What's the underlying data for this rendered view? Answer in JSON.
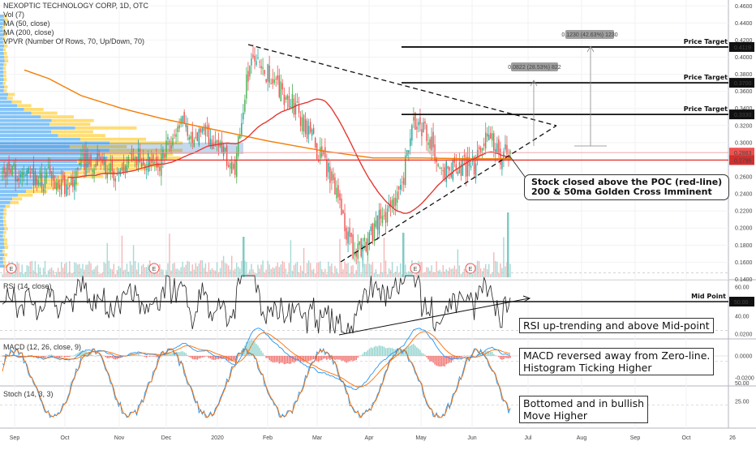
{
  "header": {
    "symbol_line": "NEXOPTIC TECHNOLOGY CORP, 1D, OTC",
    "indicators": [
      "Vol (7)",
      "MA (50, close)",
      "MA (200, close)",
      "VPVR (Number Of Rows, 70, Up/Down, 70)"
    ]
  },
  "panes": {
    "rsi_title": "RSI (14, close)",
    "macd_title": "MACD (12, 26, close, 9)",
    "stoch_title": "Stoch (14, 3, 3)",
    "mid_point_label": "Mid Point"
  },
  "annotations": {
    "poc_callout_line1": "Stock closed above the POC (red-line)",
    "poc_callout_line2": "200 & 50ma Golden Cross Imminent",
    "rsi_note": "RSI up-trending and above Mid-point",
    "macd_note_line1": "MACD reversed away from Zero-line.",
    "macd_note_line2": "Histogram Ticking Higher",
    "stoch_note_line1": "Bottomed and in bullish",
    "stoch_note_line2": "Move Higher"
  },
  "colors": {
    "up": "#26a69a",
    "up_bright": "#4caf50",
    "down": "#ef5350",
    "ma50": "#e53935",
    "ma200": "#f57c00",
    "poc": "#e53935",
    "rsi": "#222222",
    "macd": "#2196f3",
    "signal": "#ff6d00",
    "vpvr_up": "#64b5f6",
    "vpvr_down": "#ffd54f"
  },
  "chart_data": [
    {
      "type": "candlestick",
      "title": "NEXOPTIC TECHNOLOGY CORP, 1D, OTC",
      "y_axis_ticks": [
        "0.4600",
        "0.4400",
        "0.4200",
        "0.4000",
        "0.3800",
        "0.3600",
        "0.3400",
        "0.3200",
        "0.3000",
        "0.2800",
        "0.2600",
        "0.2400",
        "0.2200",
        "0.2000",
        "0.1800",
        "0.1600",
        "0.1400"
      ],
      "ylim": [
        0.13,
        0.465
      ],
      "x_axis_ticks": [
        "Sep",
        "Oct",
        "Nov",
        "Dec",
        "2020",
        "Feb",
        "Mar",
        "Apr",
        "May",
        "Jun",
        "Jul",
        "Aug",
        "Sep",
        "Oct",
        "26"
      ],
      "price_levels": [
        {
          "label": "Price Target",
          "value": 0.4119,
          "value_text": "0.4119"
        },
        {
          "label": "Price Target",
          "value": 0.37,
          "value_text": "0.3700"
        },
        {
          "label": "Price Target",
          "value": 0.333,
          "value_text": "0.3330"
        }
      ],
      "last_price": {
        "value": 0.2883,
        "text": "0.2883"
      },
      "poc": {
        "value": 0.2795,
        "text": "0.2795"
      },
      "measure_boxes": [
        "0.0822 (28.53%) 822",
        "0.1230 (42.63%) 1230"
      ],
      "series": [
        {
          "name": "MA (50, close)",
          "color": "#e53935"
        },
        {
          "name": "MA (200, close)",
          "color": "#f57c00"
        }
      ],
      "grid": true
    },
    {
      "type": "line",
      "title": "RSI (14, close)",
      "y_axis_ticks": [
        "60.00",
        "50.00",
        "40.00"
      ],
      "current": {
        "value": 50.0,
        "text": "50.00"
      },
      "ylim": [
        20,
        75
      ]
    },
    {
      "type": "line",
      "title": "MACD (12, 26, close, 9)",
      "y_axis_ticks": [
        "0.0200",
        "0.0000",
        "-0.0200"
      ],
      "ylim": [
        -0.025,
        0.03
      ]
    },
    {
      "type": "line",
      "title": "Stoch (14, 3, 3)",
      "y_axis_ticks": [
        "50.00",
        "25.00"
      ],
      "ylim": [
        0,
        100
      ]
    }
  ]
}
